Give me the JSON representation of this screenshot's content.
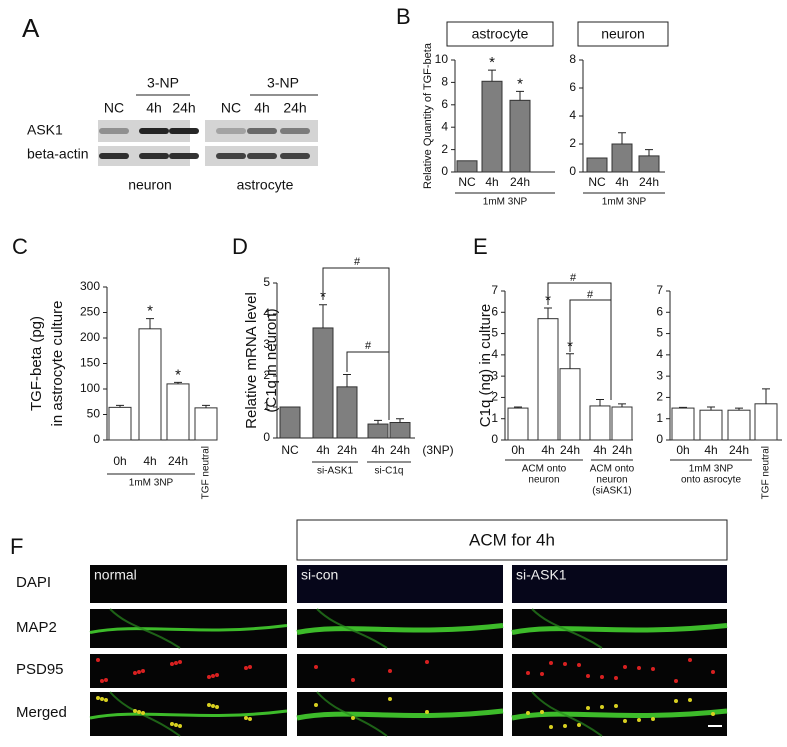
{
  "panel_labels": [
    "A",
    "B",
    "C",
    "D",
    "E",
    "F"
  ],
  "western_blot": {
    "treatment_labels": [
      "3-NP",
      "3-NP"
    ],
    "lanes": [
      [
        "NC",
        "4h",
        "24h"
      ],
      [
        "NC",
        "4h",
        "24h"
      ]
    ],
    "proteins": [
      "ASK1",
      "beta-actin"
    ],
    "cell_types": [
      "neuron",
      "astrocyte"
    ]
  },
  "chart_data": [
    {
      "type": "bar",
      "title": "astrocyte",
      "y_label": [
        "Relative Quantity of TGF-beta"
      ],
      "categories": [
        "NC",
        "4h",
        "24h"
      ],
      "values": [
        1,
        8.1,
        6.4
      ],
      "errors": [
        null,
        1.0,
        0.8
      ],
      "significance": [
        null,
        "*",
        "*"
      ],
      "groups": [
        [
          "1mM 3NP"
        ]
      ],
      "color": "#7f7f7f",
      "ylim": [
        0,
        10
      ],
      "yticks": [
        0,
        2,
        4,
        6,
        8,
        10
      ]
    },
    {
      "type": "bar",
      "title": "neuron",
      "categories": [
        "NC",
        "4h",
        "24h"
      ],
      "values": [
        1,
        2.0,
        1.15
      ],
      "errors": [
        null,
        0.8,
        0.45
      ],
      "groups": [
        [
          "1mM 3NP"
        ]
      ],
      "color": "#7f7f7f",
      "ylim": [
        0,
        8
      ],
      "yticks": [
        0,
        2,
        4,
        6,
        8
      ]
    },
    {
      "type": "bar",
      "y_label": [
        "TGF-beta (pg)",
        "in astrocyte culture"
      ],
      "categories": [
        "0h",
        "4h",
        "24h",
        "TGF neutral"
      ],
      "values": [
        64,
        218,
        110,
        63
      ],
      "errors": [
        4,
        20,
        3,
        5
      ],
      "significance": [
        null,
        "*",
        "*",
        null
      ],
      "groups": [
        [
          "1mM 3NP"
        ]
      ],
      "color": "#ffffff",
      "ylim": [
        0,
        300
      ],
      "yticks": [
        0,
        50,
        100,
        150,
        200,
        250,
        300
      ]
    },
    {
      "type": "bar",
      "y_label": [
        "Relative mRNA level",
        "(C1q in neuron)"
      ],
      "categories": [
        "NC",
        "4h",
        "24h",
        "4h",
        "24h"
      ],
      "values": [
        1,
        3.55,
        1.65,
        0.45,
        0.5
      ],
      "errors": [
        null,
        0.75,
        0.4,
        0.12,
        0.12
      ],
      "significance": [
        null,
        "*",
        null,
        null,
        null
      ],
      "groups": [
        [
          "si-ASK1"
        ],
        [
          "si-C1q"
        ]
      ],
      "annotations": [
        "#",
        "#"
      ],
      "x_note": "(3NP)",
      "color": "#7f7f7f",
      "ylim": [
        0,
        5
      ],
      "yticks": [
        0,
        1,
        2,
        3,
        4,
        5
      ]
    },
    {
      "type": "bar",
      "y_label": [
        "C1q (ng) in culture"
      ],
      "categories": [
        "0h",
        "4h",
        "24h",
        "4h",
        "24h"
      ],
      "values": [
        1.5,
        5.7,
        3.35,
        1.6,
        1.55
      ],
      "errors": [
        0.05,
        0.5,
        0.7,
        0.3,
        0.15
      ],
      "significance": [
        null,
        "*",
        "*",
        null,
        null
      ],
      "groups": [
        [
          "ACM onto",
          "neuron"
        ],
        [
          "ACM onto",
          "neuron",
          "(siASK1)"
        ]
      ],
      "annotations": [
        "#",
        "#"
      ],
      "color": "#ffffff",
      "ylim": [
        0,
        7
      ],
      "yticks": [
        0,
        1,
        2,
        3,
        4,
        5,
        6,
        7
      ]
    },
    {
      "type": "bar",
      "categories": [
        "0h",
        "4h",
        "24h",
        "TGF neutral"
      ],
      "values": [
        1.5,
        1.4,
        1.4,
        1.7
      ],
      "errors": [
        0.03,
        0.15,
        0.1,
        0.7
      ],
      "groups": [
        [
          "1mM 3NP",
          "onto asrocyte"
        ]
      ],
      "color": "#ffffff",
      "ylim": [
        0,
        7
      ],
      "yticks": [
        0,
        1,
        2,
        3,
        4,
        5,
        6,
        7
      ]
    }
  ],
  "imaging": {
    "header": "ACM for 4h",
    "rows": [
      "DAPI",
      "MAP2",
      "PSD95",
      "Merged"
    ],
    "columns": [
      "normal",
      "si-con",
      "si-ASK1"
    ]
  }
}
